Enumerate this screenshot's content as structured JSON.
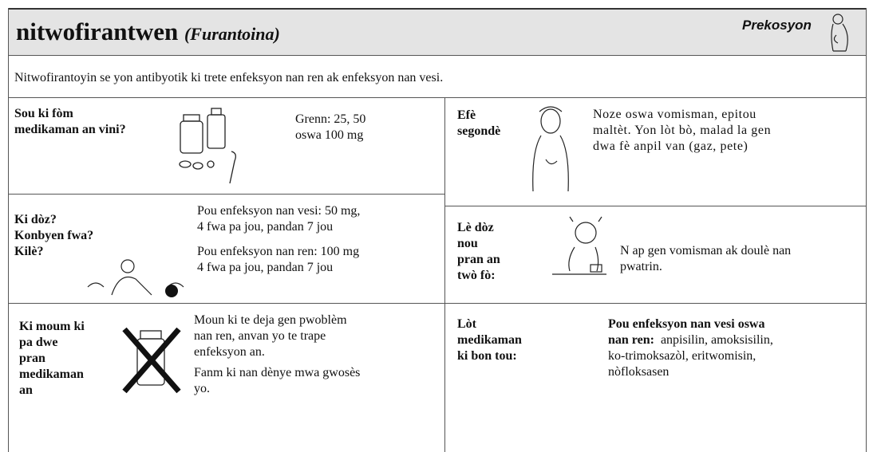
{
  "header": {
    "title": "nitwofirantwen",
    "subtitle": "(Furantoina)",
    "badge": "Prekosyon"
  },
  "intro": "Nitwofirantoyin se yon antibyotik ki trete enfeksyon nan ren ak enfeksyon nan vesi.",
  "form": {
    "label": [
      "Sou ki fòm",
      "medikaman an vini?"
    ],
    "text": [
      "Grenn: 25, 50",
      "oswa 100 mg"
    ]
  },
  "dose": {
    "label": [
      "Ki dòz?",
      "Konbyen fwa?",
      "Kilè?"
    ],
    "paragraphs": [
      [
        "Pou enfeksyon nan vesi: 50 mg,",
        "4 fwa pa jou, pandan 7 jou"
      ],
      [
        "Pou enfeksyon nan ren: 100 mg",
        "4 fwa pa jou, pandan 7 jou"
      ]
    ]
  },
  "avoid": {
    "label": [
      "Ki moum ki",
      "pa dwe",
      "pran",
      "medikaman",
      "an"
    ],
    "paragraphs": [
      [
        "Moun ki te deja gen pwoblèm",
        "nan ren, anvan yo te trape",
        "enfeksyon an."
      ],
      [
        "Fanm ki nan dènye mwa gwosès",
        "yo."
      ]
    ]
  },
  "side_effects": {
    "label": [
      "Efè",
      "segondè"
    ],
    "text": [
      "Noze oswa vomisman, epitou",
      "maltèt. Yon lòt bò, malad la gen",
      "dwa fè anpil van (gaz, pete)"
    ]
  },
  "overdose": {
    "label": [
      "Lè dòz",
      "nou",
      "pran an",
      "twò fò:"
    ],
    "text": [
      "N ap gen vomisman ak doulè nan",
      "pwatrin."
    ]
  },
  "alternatives": {
    "label": [
      "Lòt",
      "medikaman",
      "ki bon tou:"
    ],
    "lead": [
      "Pou enfeksyon nan vesi oswa",
      "nan ren:"
    ],
    "text": [
      "anpisilin, amoksisilin,",
      "ko-trimoksazòl, eritwomisin,",
      "nòfloksasen"
    ]
  }
}
